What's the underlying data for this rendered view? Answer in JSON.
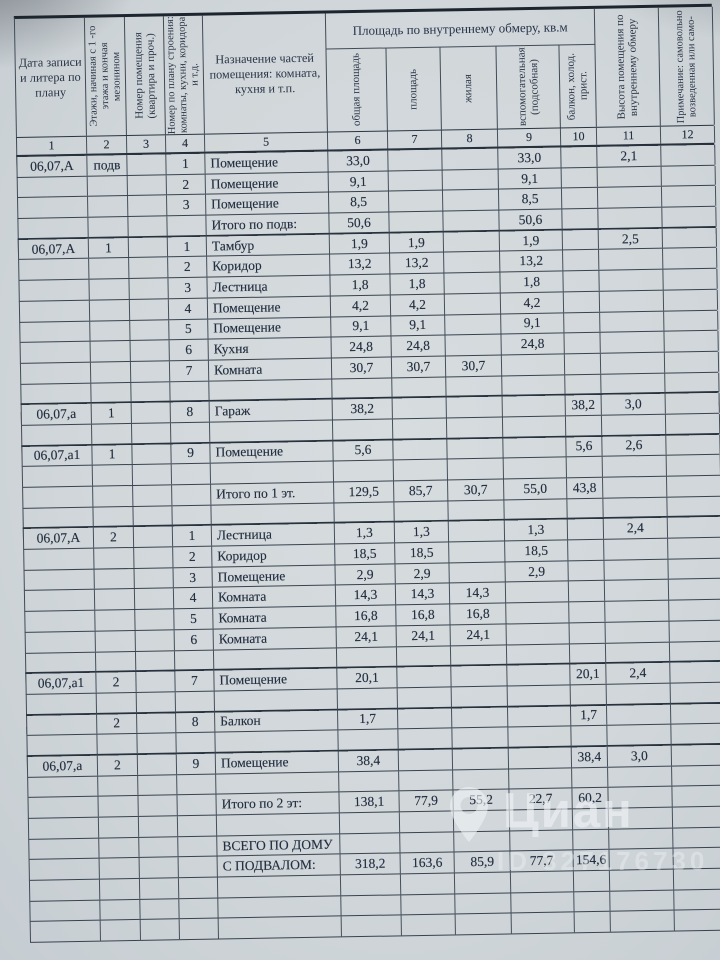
{
  "watermark": {
    "brand": "Циан",
    "id_text": "ID 327176730"
  },
  "table": {
    "area_group_title": "Площадь по внутреннему обмеру, кв.м",
    "columns": [
      {
        "n": "1",
        "label": "Дата записи и литера по плану",
        "orient": "h",
        "group": false
      },
      {
        "n": "2",
        "label": "Этажи, начиная с 1 -го этажа и кончая мезонином",
        "orient": "v",
        "group": false
      },
      {
        "n": "3",
        "label": "Номер помещения (квартира и проч.)",
        "orient": "v",
        "group": false
      },
      {
        "n": "4",
        "label": "Номер по плану строения: комнаты, кухни, коридора и т.д.",
        "orient": "v",
        "group": false
      },
      {
        "n": "5",
        "label": "Назначение частей помеще­ния: комната, кухня и т.п.",
        "orient": "h",
        "group": false
      },
      {
        "n": "6",
        "label": "общая площадь",
        "orient": "v",
        "group": true
      },
      {
        "n": "7",
        "label": "площадь",
        "orient": "v",
        "group": true
      },
      {
        "n": "8",
        "label": "жилая",
        "orient": "v",
        "group": true
      },
      {
        "n": "9",
        "label": "вспомогатель­ная (подсобная)",
        "orient": "v",
        "group": true
      },
      {
        "n": "10",
        "label": "балкон, холод. прист.",
        "orient": "v",
        "group": true
      },
      {
        "n": "11",
        "label": "Высота помещения по внутреннему обмеру",
        "orient": "v",
        "group": false
      },
      {
        "n": "12",
        "label": "Примечание: самовольно воз­веденная или само-",
        "orient": "v",
        "group": false
      }
    ],
    "rows": [
      {
        "sep": true,
        "c1": "06,07,А",
        "c2": "подв",
        "c4": "1",
        "c5": "Помещение",
        "c6": "33,0",
        "c9": "33,0",
        "c11": "2,1"
      },
      {
        "c4": "2",
        "c5": "Помещение",
        "c6": "9,1",
        "c9": "9,1"
      },
      {
        "c4": "3",
        "c5": "Помещение",
        "c6": "8,5",
        "c9": "8,5"
      },
      {
        "c5": "Итого по подв:",
        "c6": "50,6",
        "c9": "50,6"
      },
      {
        "sep": true,
        "c1": "06,07,А",
        "c2": "1",
        "c4": "1",
        "c5": "Тамбур",
        "c6": "1,9",
        "c7": "1,9",
        "c9": "1,9",
        "c11": "2,5"
      },
      {
        "c4": "2",
        "c5": "Коридор",
        "c6": "13,2",
        "c7": "13,2",
        "c9": "13,2"
      },
      {
        "c4": "3",
        "c5": "Лестница",
        "c6": "1,8",
        "c7": "1,8",
        "c9": "1,8"
      },
      {
        "c4": "4",
        "c5": "Помещение",
        "c6": "4,2",
        "c7": "4,2",
        "c9": "4,2"
      },
      {
        "c4": "5",
        "c5": "Помещение",
        "c6": "9,1",
        "c7": "9,1",
        "c9": "9,1"
      },
      {
        "c4": "6",
        "c5": "Кухня",
        "c6": "24,8",
        "c7": "24,8",
        "c9": "24,8"
      },
      {
        "c4": "7",
        "c5": "Комната",
        "c6": "30,7",
        "c7": "30,7",
        "c8": "30,7"
      },
      {},
      {
        "sep": true,
        "c1": "06,07,а",
        "c2": "1",
        "c4": "8",
        "c5": "Гараж",
        "c6": "38,2",
        "c10": "38,2",
        "c11": "3,0"
      },
      {},
      {
        "sep": true,
        "c1": "06,07,а1",
        "c2": "1",
        "c4": "9",
        "c5": "Помещение",
        "c6": "5,6",
        "c10": "5,6",
        "c11": "2,6"
      },
      {},
      {
        "c5": "Итого по 1 эт.",
        "c6": "129,5",
        "c7": "85,7",
        "c8": "30,7",
        "c9": "55,0",
        "c10": "43,8"
      },
      {},
      {
        "sep": true,
        "c1": "06,07,А",
        "c2": "2",
        "c4": "1",
        "c5": "Лестница",
        "c6": "1,3",
        "c7": "1,3",
        "c9": "1,3",
        "c11": "2,4"
      },
      {
        "c4": "2",
        "c5": "Коридор",
        "c6": "18,5",
        "c7": "18,5",
        "c9": "18,5"
      },
      {
        "c4": "3",
        "c5": "Помещение",
        "c6": "2,9",
        "c7": "2,9",
        "c9": "2,9"
      },
      {
        "c4": "4",
        "c5": "Комната",
        "c6": "14,3",
        "c7": "14,3",
        "c8": "14,3"
      },
      {
        "c4": "5",
        "c5": "Комната",
        "c6": "16,8",
        "c7": "16,8",
        "c8": "16,8"
      },
      {
        "c4": "6",
        "c5": "Комната",
        "c6": "24,1",
        "c7": "24,1",
        "c8": "24,1"
      },
      {},
      {
        "sep": true,
        "c1": "06,07,а1",
        "c2": "2",
        "c4": "7",
        "c5": "Помещение",
        "c6": "20,1",
        "c10": "20,1",
        "c11": "2,4"
      },
      {},
      {
        "sep": true,
        "c2": "2",
        "c4": "8",
        "c5": "Балкон",
        "c6": "1,7",
        "c10": "1,7"
      },
      {},
      {
        "sep": true,
        "c1": "06,07,а",
        "c2": "2",
        "c4": "9",
        "c5": "Помещение",
        "c6": "38,4",
        "c10": "38,4",
        "c11": "3,0"
      },
      {},
      {
        "c5": "Итого по 2 эт:",
        "c6": "138,1",
        "c7": "77,9",
        "c8": "55,2",
        "c9": "22,7",
        "c10": "60,2"
      },
      {},
      {
        "c5": "ВСЕГО ПО ДОМУ"
      },
      {
        "c5": "С ПОДВАЛОМ:",
        "c6": "318,2",
        "c7": "163,6",
        "c8": "85,9",
        "c9": "77,7",
        "c10": "154,6"
      },
      {},
      {},
      {}
    ]
  }
}
